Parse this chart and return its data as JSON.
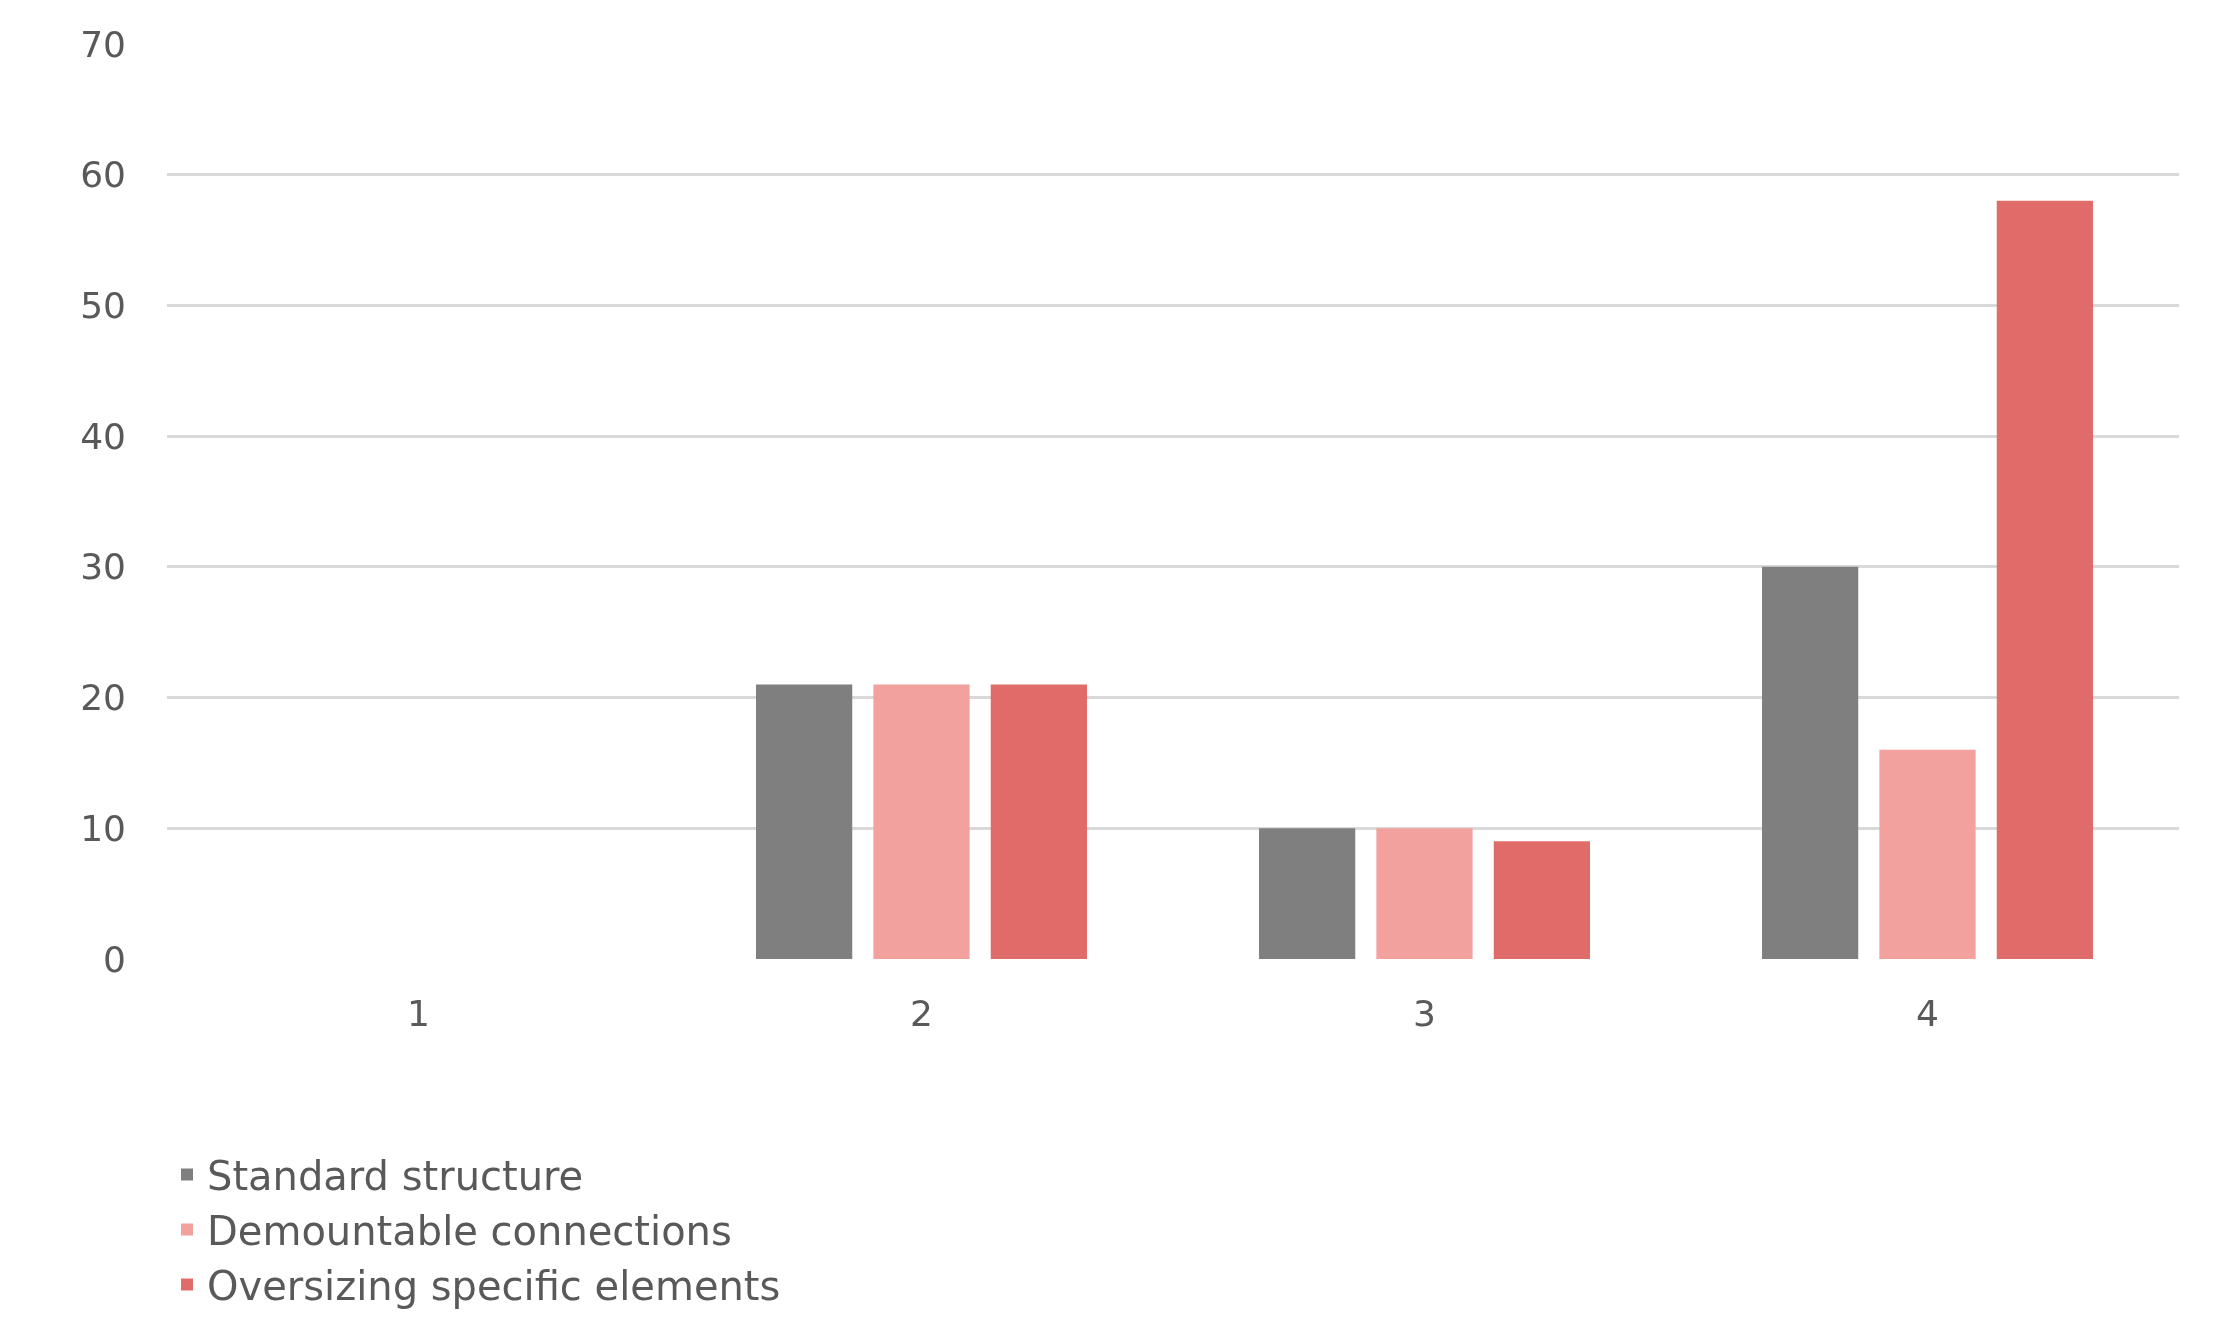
{
  "chart_data": {
    "type": "bar",
    "categories": [
      "1",
      "2",
      "3",
      "4"
    ],
    "series": [
      {
        "name": "Standard structure",
        "color": "#7f7f7f",
        "values": [
          0,
          21,
          10,
          30
        ]
      },
      {
        "name": "Demountable connections",
        "color": "#f2a19f",
        "values": [
          0,
          21,
          10,
          16
        ]
      },
      {
        "name": "Oversizing specific elements",
        "color": "#e06c6a",
        "values": [
          0,
          21,
          9,
          58
        ]
      }
    ],
    "ylim": [
      0,
      70
    ],
    "yticks": [
      0,
      10,
      20,
      30,
      40,
      50,
      60,
      70
    ],
    "grid": "y",
    "legend": "bottom"
  }
}
